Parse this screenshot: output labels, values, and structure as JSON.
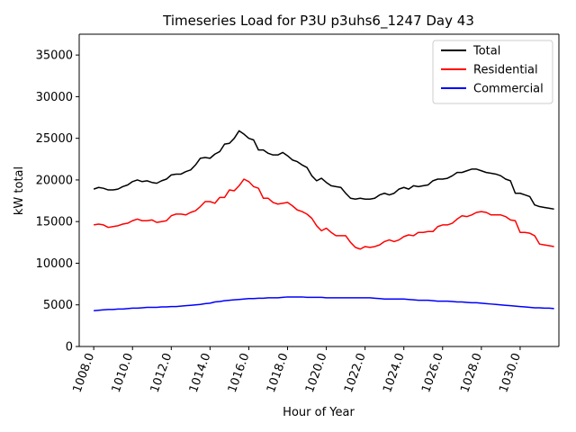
{
  "chart_data": {
    "type": "line",
    "title": "Timeseries Load for P3U p3uhs6_1247  Day 43",
    "xlabel": "Hour of Year",
    "ylabel": "kW total",
    "xlim": [
      1007.25,
      1032.0
    ],
    "ylim": [
      0,
      37500
    ],
    "xticks": [
      1008,
      1010,
      1012,
      1014,
      1016,
      1018,
      1020,
      1022,
      1024,
      1026,
      1028,
      1030
    ],
    "xtick_labels": [
      "1008.0",
      "1010.0",
      "1012.0",
      "1014.0",
      "1016.0",
      "1018.0",
      "1020.0",
      "1022.0",
      "1024.0",
      "1026.0",
      "1028.0",
      "1030.0"
    ],
    "yticks": [
      0,
      5000,
      10000,
      15000,
      20000,
      25000,
      30000,
      35000
    ],
    "ytick_labels": [
      "0",
      "5000",
      "10000",
      "15000",
      "20000",
      "25000",
      "30000",
      "35000"
    ],
    "grid": false,
    "legend_position": "top-right",
    "x": [
      1008.0,
      1008.25,
      1008.5,
      1008.75,
      1009.0,
      1009.25,
      1009.5,
      1009.75,
      1010.0,
      1010.25,
      1010.5,
      1010.75,
      1011.0,
      1011.25,
      1011.5,
      1011.75,
      1012.0,
      1012.25,
      1012.5,
      1012.75,
      1013.0,
      1013.25,
      1013.5,
      1013.75,
      1014.0,
      1014.25,
      1014.5,
      1014.75,
      1015.0,
      1015.25,
      1015.5,
      1015.75,
      1016.0,
      1016.25,
      1016.5,
      1016.75,
      1017.0,
      1017.25,
      1017.5,
      1017.75,
      1018.0,
      1018.25,
      1018.5,
      1018.75,
      1019.0,
      1019.25,
      1019.5,
      1019.75,
      1020.0,
      1020.25,
      1020.5,
      1020.75,
      1021.0,
      1021.25,
      1021.5,
      1021.75,
      1022.0,
      1022.25,
      1022.5,
      1022.75,
      1023.0,
      1023.25,
      1023.5,
      1023.75,
      1024.0,
      1024.25,
      1024.5,
      1024.75,
      1025.0,
      1025.25,
      1025.5,
      1025.75,
      1026.0,
      1026.25,
      1026.5,
      1026.75,
      1027.0,
      1027.25,
      1027.5,
      1027.75,
      1028.0,
      1028.25,
      1028.5,
      1028.75,
      1029.0,
      1029.25,
      1029.5,
      1029.75,
      1030.0,
      1030.25,
      1030.5,
      1030.75,
      1031.0,
      1031.25,
      1031.5,
      1031.75
    ],
    "series": [
      {
        "name": "Total",
        "color": "#000000",
        "values": [
          18900,
          19100,
          19000,
          18800,
          18800,
          18900,
          19200,
          19400,
          19800,
          20000,
          19800,
          19900,
          19700,
          19600,
          19900,
          20100,
          20600,
          20700,
          20700,
          21000,
          21200,
          21800,
          22600,
          22700,
          22600,
          23100,
          23400,
          24300,
          24400,
          25000,
          25900,
          25500,
          25000,
          24800,
          23600,
          23600,
          23200,
          23000,
          23000,
          23300,
          22900,
          22400,
          22200,
          21800,
          21500,
          20500,
          19900,
          20200,
          19700,
          19300,
          19200,
          19100,
          18400,
          17800,
          17700,
          17800,
          17700,
          17700,
          17800,
          18200,
          18400,
          18200,
          18400,
          18900,
          19100,
          18900,
          19300,
          19200,
          19300,
          19400,
          19900,
          20100,
          20100,
          20200,
          20500,
          20900,
          20900,
          21100,
          21300,
          21300,
          21100,
          20900,
          20800,
          20700,
          20500,
          20100,
          19900,
          18400,
          18400,
          18200,
          18000,
          17000,
          16800,
          16700,
          16600,
          16500
        ]
      },
      {
        "name": "Residential",
        "color": "#ff0000",
        "values": [
          14600,
          14700,
          14600,
          14300,
          14400,
          14500,
          14700,
          14800,
          15100,
          15300,
          15100,
          15100,
          15200,
          14900,
          15000,
          15100,
          15700,
          15900,
          15900,
          15800,
          16100,
          16300,
          16800,
          17400,
          17400,
          17200,
          17900,
          17900,
          18800,
          18700,
          19300,
          20100,
          19800,
          19200,
          19000,
          17800,
          17800,
          17300,
          17100,
          17200,
          17300,
          16900,
          16400,
          16200,
          15900,
          15400,
          14500,
          13900,
          14200,
          13700,
          13300,
          13300,
          13300,
          12500,
          11900,
          11700,
          12000,
          11900,
          12000,
          12200,
          12600,
          12800,
          12600,
          12800,
          13200,
          13400,
          13300,
          13700,
          13700,
          13800,
          13800,
          14400,
          14600,
          14600,
          14800,
          15300,
          15700,
          15600,
          15800,
          16100,
          16200,
          16100,
          15800,
          15800,
          15800,
          15600,
          15200,
          15100,
          13700,
          13700,
          13600,
          13300,
          12300,
          12200,
          12100,
          12000
        ]
      },
      {
        "name": "Commercial",
        "color": "#0000ff",
        "values": [
          4300,
          4350,
          4400,
          4450,
          4450,
          4500,
          4500,
          4550,
          4600,
          4600,
          4650,
          4700,
          4700,
          4700,
          4750,
          4750,
          4800,
          4800,
          4850,
          4900,
          4950,
          5000,
          5050,
          5150,
          5200,
          5350,
          5400,
          5500,
          5550,
          5600,
          5650,
          5700,
          5750,
          5750,
          5800,
          5800,
          5850,
          5850,
          5850,
          5900,
          5950,
          5950,
          5950,
          5950,
          5900,
          5900,
          5900,
          5900,
          5850,
          5850,
          5850,
          5850,
          5850,
          5850,
          5850,
          5850,
          5850,
          5850,
          5800,
          5750,
          5700,
          5700,
          5700,
          5700,
          5700,
          5650,
          5600,
          5550,
          5550,
          5550,
          5500,
          5450,
          5450,
          5450,
          5400,
          5350,
          5350,
          5300,
          5250,
          5250,
          5200,
          5150,
          5100,
          5050,
          5000,
          4950,
          4900,
          4850,
          4800,
          4750,
          4700,
          4650,
          4650,
          4600,
          4600,
          4550
        ]
      }
    ]
  }
}
